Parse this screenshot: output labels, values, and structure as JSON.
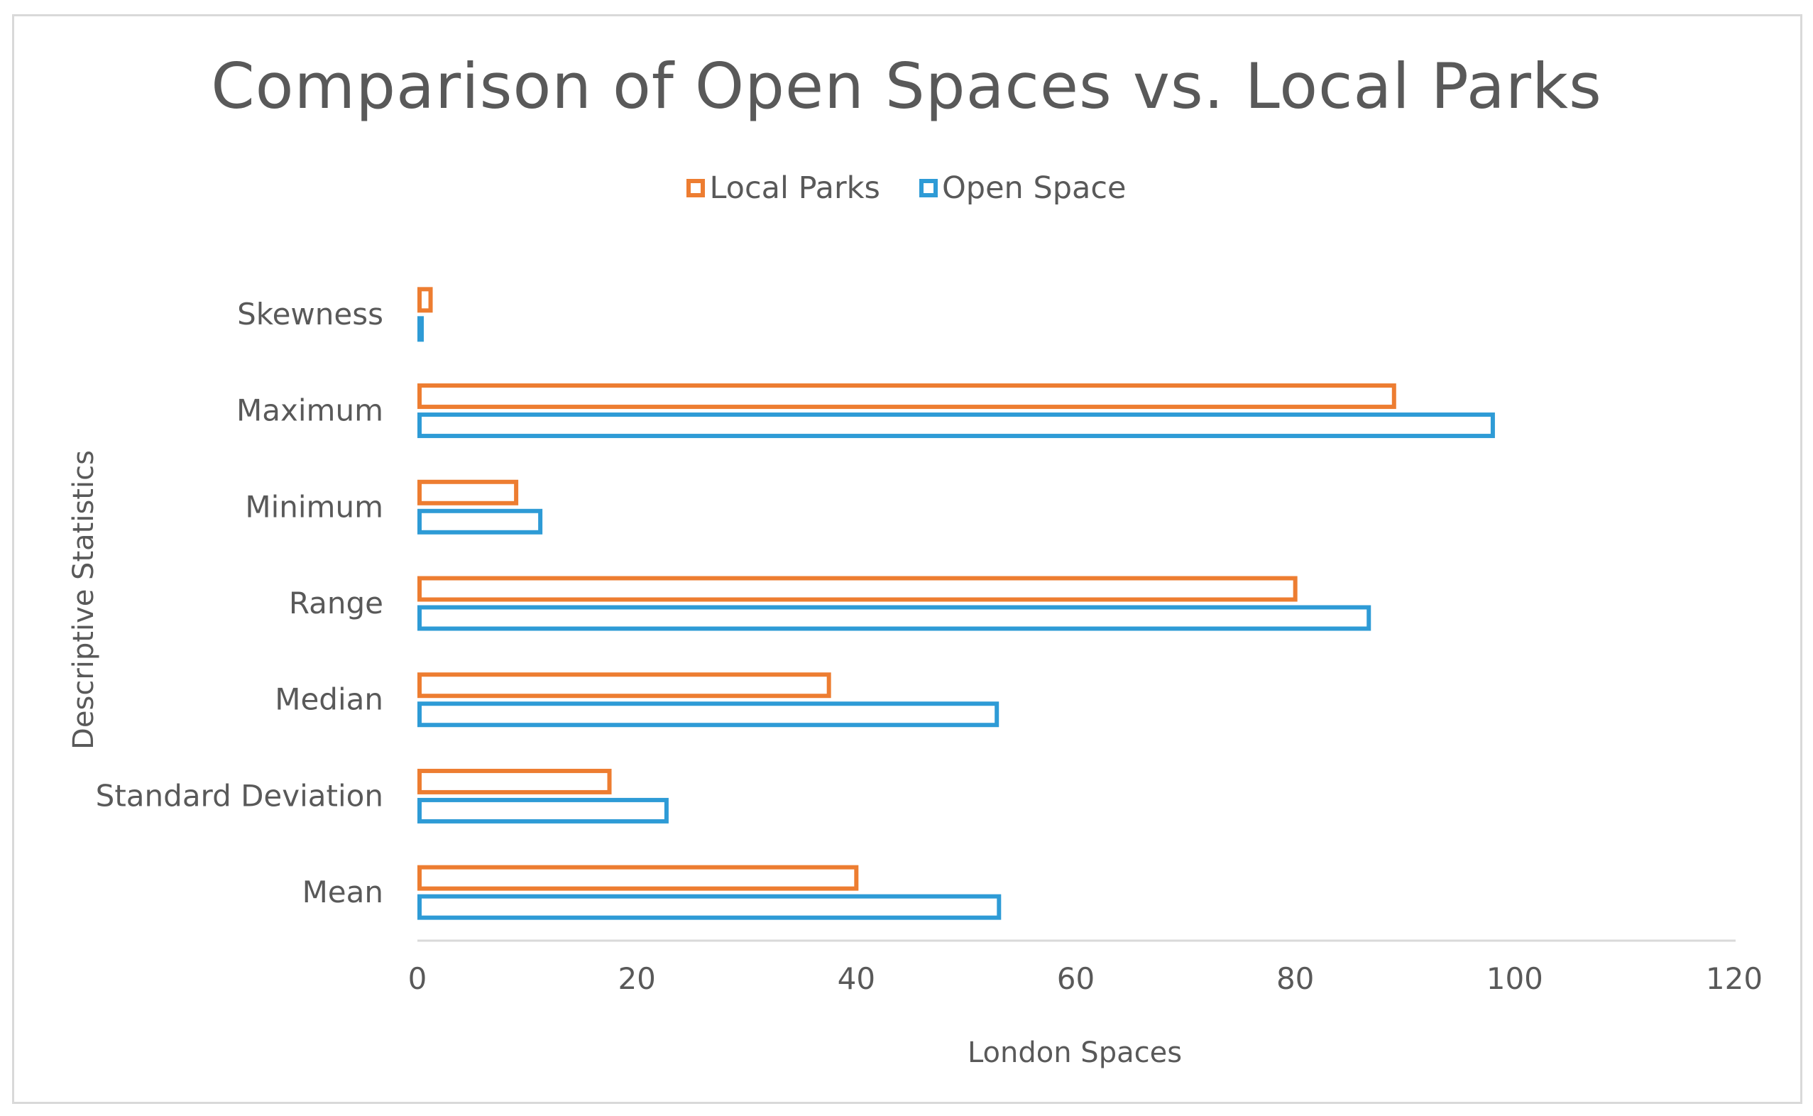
{
  "chart_data": {
    "type": "bar",
    "orientation": "horizontal",
    "title": "Comparison of Open Spaces vs. Local Parks",
    "xlabel": "London Spaces",
    "ylabel": "Descriptive Statistics",
    "xlim": [
      0,
      120
    ],
    "xticks": [
      0,
      20,
      40,
      60,
      80,
      100,
      120
    ],
    "grid": false,
    "legend_position": "top",
    "categories": [
      "Mean",
      "Standard Deviation",
      "Median",
      "Range",
      "Minimum",
      "Maximum",
      "Skewness"
    ],
    "series": [
      {
        "name": "Local Parks",
        "color": "#ED7D31",
        "values": [
          40,
          17.5,
          37.5,
          80,
          9,
          89,
          1.2
        ]
      },
      {
        "name": "Open Space",
        "color": "#2E9BD6",
        "values": [
          53,
          22.7,
          52.8,
          86.7,
          11.2,
          98,
          0.3
        ]
      }
    ]
  }
}
